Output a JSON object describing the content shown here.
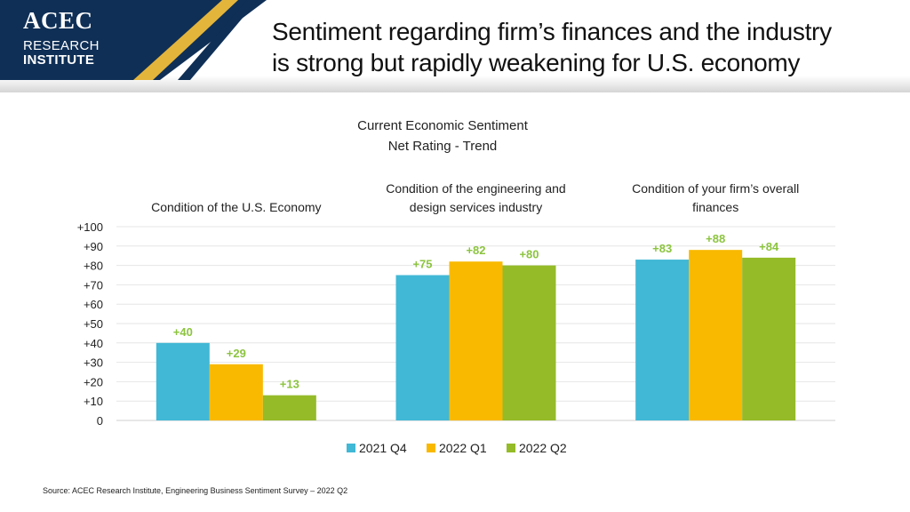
{
  "brand": {
    "line1": "ACEC",
    "line2": "RESEARCH",
    "line3": "INSTITUTE",
    "navy": "#0f2f56",
    "gold": "#e4b53b"
  },
  "page": {
    "title_line1": "Sentiment regarding firm’s finances and the industry",
    "title_line2": "is strong but rapidly weakening for U.S. economy"
  },
  "source_note": "Source: ACEC Research Institute, Engineering Business Sentiment Survey – 2022 Q2",
  "chart_data": {
    "type": "bar",
    "title_line1": "Current Economic Sentiment",
    "title_line2": "Net Rating - Trend",
    "categories": [
      [
        "Condition of the U.S. Economy"
      ],
      [
        "Condition of the engineering and",
        "design services industry"
      ],
      [
        "Condition of your firm’s overall",
        "finances"
      ]
    ],
    "series": [
      {
        "name": "2021 Q4",
        "color": "#41b8d5",
        "values": [
          40,
          75,
          83
        ]
      },
      {
        "name": "2022 Q1",
        "color": "#f9b900",
        "values": [
          29,
          82,
          88
        ]
      },
      {
        "name": "2022 Q2",
        "color": "#95bb29",
        "values": [
          13,
          80,
          84
        ]
      }
    ],
    "data_labels": [
      [
        "+40",
        "+75",
        "+83"
      ],
      [
        "+29",
        "+82",
        "+88"
      ],
      [
        "+13",
        "+80",
        "+84"
      ]
    ],
    "label_color": "#8cc43f",
    "yticks": [
      "0",
      "+10",
      "+20",
      "+30",
      "+40",
      "+50",
      "+60",
      "+70",
      "+80",
      "+90",
      "+100"
    ],
    "ylim": [
      0,
      100
    ],
    "grid": true,
    "legend_position": "bottom-center"
  }
}
